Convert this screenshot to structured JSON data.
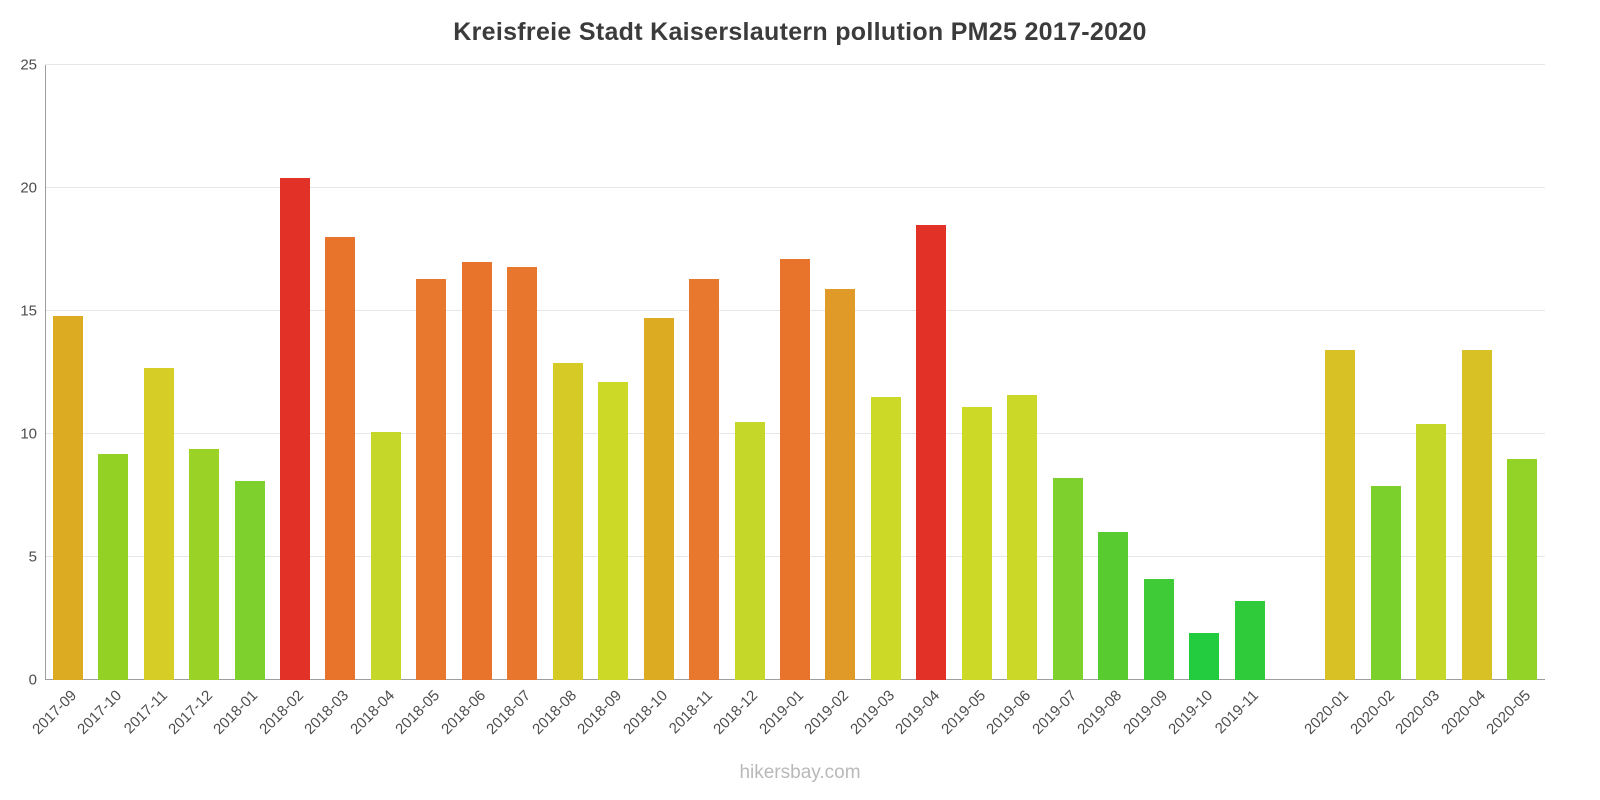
{
  "page": {
    "title": "Kreisfreie Stadt Kaiserslautern pollution PM25 2017-2020",
    "footer": "hikersbay.com"
  },
  "colors": {
    "background": "#ffffff",
    "title": "#3b3b3b",
    "axis_label": "#4d4d4d",
    "gridline": "#e7e7e7",
    "axis_line": "#9e9e9e",
    "footer": "#b9b9b9"
  },
  "chart_data": {
    "type": "bar",
    "title": "Kreisfreie Stadt Kaiserslautern pollution PM25 2017-2020",
    "xlabel": "",
    "ylabel": "",
    "ylim": [
      0,
      25
    ],
    "y_ticks": [
      0,
      5,
      10,
      15,
      20,
      25
    ],
    "grid": true,
    "legend": false,
    "points": [
      {
        "label": "2017-09",
        "value": 14.8,
        "color": "#dcab22"
      },
      {
        "label": "2017-10",
        "value": 9.2,
        "color": "#94d125"
      },
      {
        "label": "2017-11",
        "value": 12.7,
        "color": "#d6ce26"
      },
      {
        "label": "2017-12",
        "value": 9.4,
        "color": "#9ad226"
      },
      {
        "label": "2018-01",
        "value": 8.1,
        "color": "#7ed02c"
      },
      {
        "label": "2018-02",
        "value": 20.4,
        "color": "#e23126"
      },
      {
        "label": "2018-03",
        "value": 18.0,
        "color": "#e8742c"
      },
      {
        "label": "2018-04",
        "value": 10.1,
        "color": "#c5d82a"
      },
      {
        "label": "2018-05",
        "value": 16.3,
        "color": "#e8782d"
      },
      {
        "label": "2018-06",
        "value": 17.0,
        "color": "#e8742c"
      },
      {
        "label": "2018-07",
        "value": 16.8,
        "color": "#e8762c"
      },
      {
        "label": "2018-08",
        "value": 12.9,
        "color": "#d6ca27"
      },
      {
        "label": "2018-09",
        "value": 12.1,
        "color": "#ccd926"
      },
      {
        "label": "2018-10",
        "value": 14.7,
        "color": "#dcab22"
      },
      {
        "label": "2018-11",
        "value": 16.3,
        "color": "#e8782d"
      },
      {
        "label": "2018-12",
        "value": 10.5,
        "color": "#c5d82a"
      },
      {
        "label": "2019-01",
        "value": 17.1,
        "color": "#e8742c"
      },
      {
        "label": "2019-02",
        "value": 15.9,
        "color": "#e09a28"
      },
      {
        "label": "2019-03",
        "value": 11.5,
        "color": "#ccd926"
      },
      {
        "label": "2019-04",
        "value": 18.5,
        "color": "#e23126"
      },
      {
        "label": "2019-05",
        "value": 11.1,
        "color": "#ccd926"
      },
      {
        "label": "2019-06",
        "value": 11.6,
        "color": "#cbd828"
      },
      {
        "label": "2019-07",
        "value": 8.2,
        "color": "#7ed02c"
      },
      {
        "label": "2019-08",
        "value": 6.0,
        "color": "#57cb30"
      },
      {
        "label": "2019-09",
        "value": 4.1,
        "color": "#3fcb38"
      },
      {
        "label": "2019-10",
        "value": 1.9,
        "color": "#22cc3e"
      },
      {
        "label": "2019-11",
        "value": 3.2,
        "color": "#2fcb3a"
      },
      {
        "label": "",
        "value": null,
        "color": null
      },
      {
        "label": "2020-01",
        "value": 13.4,
        "color": "#d8c125"
      },
      {
        "label": "2020-02",
        "value": 7.9,
        "color": "#7bd02c"
      },
      {
        "label": "2020-03",
        "value": 10.4,
        "color": "#c5d82a"
      },
      {
        "label": "2020-04",
        "value": 13.4,
        "color": "#d8c125"
      },
      {
        "label": "2020-05",
        "value": 9.0,
        "color": "#93d226"
      }
    ]
  }
}
